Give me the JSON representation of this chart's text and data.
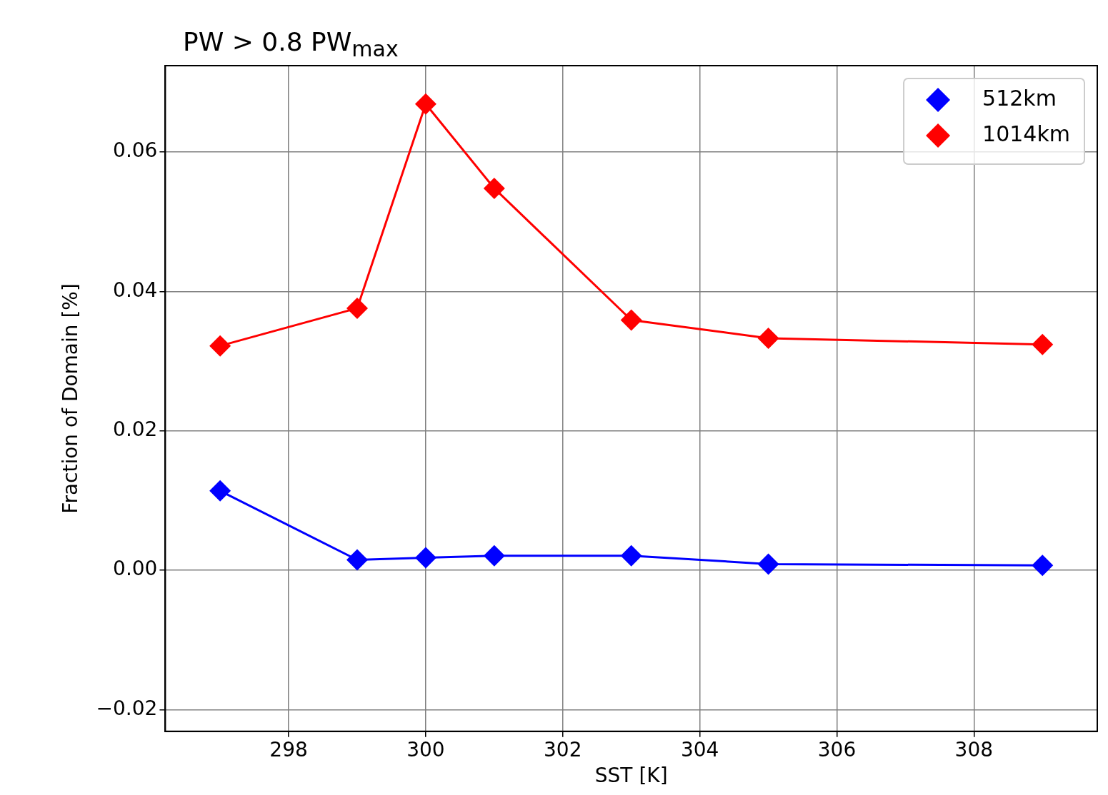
{
  "chart_data": {
    "type": "line",
    "title": "PW > 0.8 PW$_{max}$",
    "xlabel": "SST [K]",
    "ylabel": "Fraction of Domain [%]",
    "x": [
      297,
      299,
      300,
      301,
      303,
      305,
      309
    ],
    "series": [
      {
        "name": "512km",
        "color": "#0000ff",
        "values": [
          0.0114,
          0.0015,
          0.0018,
          0.0021,
          0.0021,
          0.0009,
          0.0007
        ]
      },
      {
        "name": "1014km",
        "color": "#ff0000",
        "values": [
          0.0322,
          0.0376,
          0.0669,
          0.0548,
          0.0359,
          0.0333,
          0.0324
        ]
      }
    ],
    "xlim": [
      296.2,
      309.8
    ],
    "xticks": [
      298,
      300,
      302,
      304,
      306,
      308
    ],
    "ylim": [
      -0.0231,
      0.0724
    ],
    "yticks": [
      {
        "value": -0.02,
        "label": "−0.02"
      },
      {
        "value": 0,
        "label": "0.00"
      },
      {
        "value": 0.02,
        "label": "0.02"
      },
      {
        "value": 0.04,
        "label": "0.04"
      },
      {
        "value": 0.06,
        "label": "0.06"
      }
    ],
    "grid": true,
    "legend": "top right",
    "marker": "diamond",
    "line_style": "solid"
  }
}
